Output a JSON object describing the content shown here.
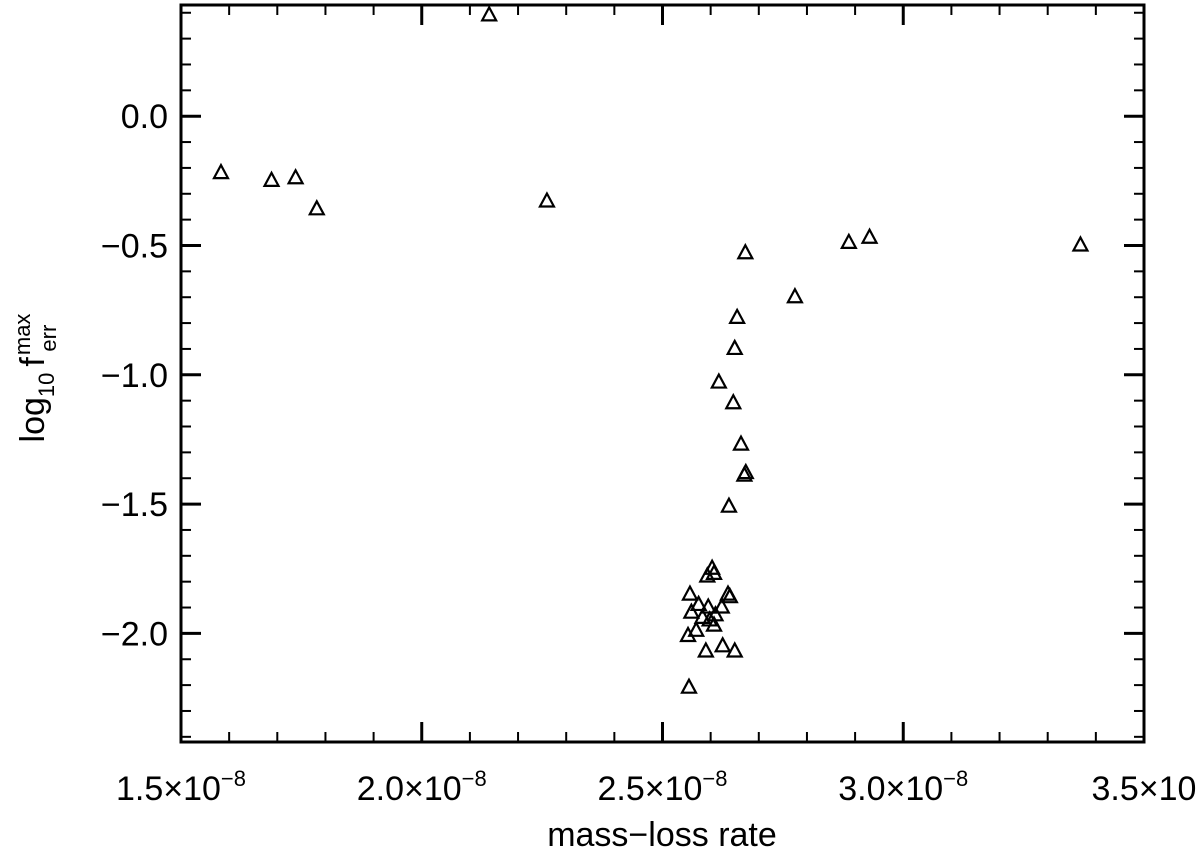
{
  "chart_data": {
    "type": "scatter",
    "marker": "triangle-open",
    "xlabel": "mass−loss rate",
    "ylabel": {
      "base": "log",
      "base_sub": "10",
      "var": "f",
      "sup": "max",
      "sub": "err"
    },
    "xlim": [
      1.5e-08,
      3.5e-08
    ],
    "ylim": [
      -2.42,
      0.43
    ],
    "grid": false,
    "x_ticks": [
      {
        "value": 1.5e-08,
        "mantissa": "1.5×10",
        "exp": "−8"
      },
      {
        "value": 2e-08,
        "mantissa": "2.0×10",
        "exp": "−8"
      },
      {
        "value": 2.5e-08,
        "mantissa": "2.5×10",
        "exp": "−8"
      },
      {
        "value": 3e-08,
        "mantissa": "3.0×10",
        "exp": "−8"
      },
      {
        "value": 3.5e-08,
        "mantissa": "3.5×10",
        "exp": ""
      }
    ],
    "y_ticks": [
      {
        "value": 0.0,
        "label": "0.0"
      },
      {
        "value": -0.5,
        "label": "−0.5"
      },
      {
        "value": -1.0,
        "label": "−1.0"
      },
      {
        "value": -1.5,
        "label": "−1.5"
      },
      {
        "value": -2.0,
        "label": "−2.0"
      }
    ],
    "points": [
      {
        "x": 2.14e-08,
        "y": 0.39
      },
      {
        "x": 1.583e-08,
        "y": -0.22
      },
      {
        "x": 1.688e-08,
        "y": -0.25
      },
      {
        "x": 1.738e-08,
        "y": -0.24
      },
      {
        "x": 1.782e-08,
        "y": -0.36
      },
      {
        "x": 2.26e-08,
        "y": -0.33
      },
      {
        "x": 2.672e-08,
        "y": -0.53
      },
      {
        "x": 2.775e-08,
        "y": -0.7
      },
      {
        "x": 2.887e-08,
        "y": -0.49
      },
      {
        "x": 2.93e-08,
        "y": -0.47
      },
      {
        "x": 3.368e-08,
        "y": -0.5
      },
      {
        "x": 2.655e-08,
        "y": -0.78
      },
      {
        "x": 2.65e-08,
        "y": -0.9
      },
      {
        "x": 2.617e-08,
        "y": -1.03
      },
      {
        "x": 2.647e-08,
        "y": -1.11
      },
      {
        "x": 2.663e-08,
        "y": -1.27
      },
      {
        "x": 2.673e-08,
        "y": -1.38
      },
      {
        "x": 2.67e-08,
        "y": -1.39
      },
      {
        "x": 2.638e-08,
        "y": -1.51
      },
      {
        "x": 2.603e-08,
        "y": -1.75
      },
      {
        "x": 2.607e-08,
        "y": -1.77
      },
      {
        "x": 2.593e-08,
        "y": -1.78
      },
      {
        "x": 2.636e-08,
        "y": -1.85
      },
      {
        "x": 2.64e-08,
        "y": -1.86
      },
      {
        "x": 2.557e-08,
        "y": -1.85
      },
      {
        "x": 2.575e-08,
        "y": -1.89
      },
      {
        "x": 2.595e-08,
        "y": -1.9
      },
      {
        "x": 2.623e-08,
        "y": -1.9
      },
      {
        "x": 2.56e-08,
        "y": -1.92
      },
      {
        "x": 2.61e-08,
        "y": -1.93
      },
      {
        "x": 2.583e-08,
        "y": -1.94
      },
      {
        "x": 2.598e-08,
        "y": -1.95
      },
      {
        "x": 2.607e-08,
        "y": -1.97
      },
      {
        "x": 2.57e-08,
        "y": -1.99
      },
      {
        "x": 2.553e-08,
        "y": -2.01
      },
      {
        "x": 2.625e-08,
        "y": -2.05
      },
      {
        "x": 2.65e-08,
        "y": -2.07
      },
      {
        "x": 2.59e-08,
        "y": -2.07
      },
      {
        "x": 2.555e-08,
        "y": -2.21
      }
    ]
  }
}
